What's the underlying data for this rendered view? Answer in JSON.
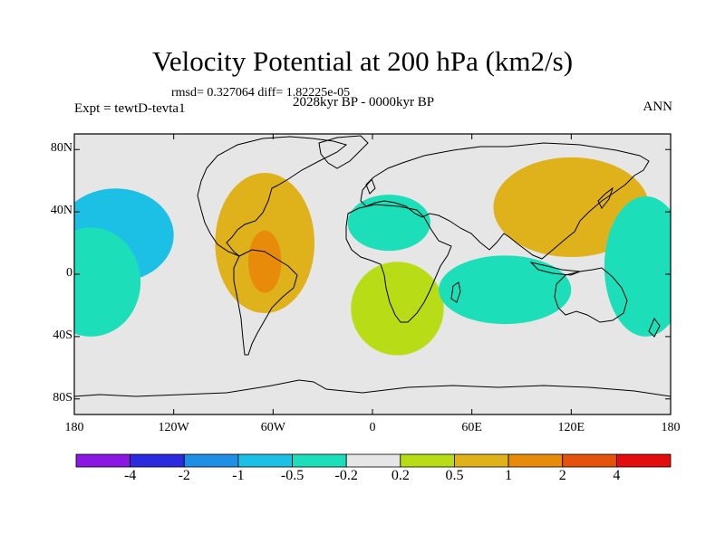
{
  "title": "Velocity Potential at 200 hPa (km2/s)",
  "stats_line": "rmsd= 0.327064 diff= 1.82225e-05",
  "period_line": "2028kyr BP - 0000kyr BP",
  "experiment": "Expt = tewtD-tevta1",
  "season": "ANN",
  "colors": {
    "ocean_bg": "#e6e6e6",
    "levels": [
      "#8b17e3",
      "#2a2adf",
      "#1e8fe4",
      "#1cc0e4",
      "#1cdfb9",
      "#e6e6e6",
      "#b8dd16",
      "#dfb11b",
      "#e88b0b",
      "#e5520c",
      "#e20e0e"
    ]
  },
  "chart_data": {
    "type": "heatmap",
    "projection": "cylindrical equidistant",
    "variable": "Velocity Potential at 200 hPa",
    "units": "km2/s",
    "xlim": [
      -180,
      180
    ],
    "ylim": [
      -90,
      90
    ],
    "x_ticks": [
      {
        "value": -180,
        "label": "180"
      },
      {
        "value": -120,
        "label": "120W"
      },
      {
        "value": -60,
        "label": "60W"
      },
      {
        "value": 0,
        "label": "0"
      },
      {
        "value": 60,
        "label": "60E"
      },
      {
        "value": 120,
        "label": "120E"
      },
      {
        "value": 180,
        "label": "180"
      }
    ],
    "y_ticks": [
      {
        "value": 80,
        "label": "80N"
      },
      {
        "value": 40,
        "label": "40N"
      },
      {
        "value": 0,
        "label": "0"
      },
      {
        "value": -40,
        "label": "40S"
      },
      {
        "value": -80,
        "label": "80S"
      }
    ],
    "colorbar_levels": [
      -4,
      -2,
      -1,
      -0.5,
      -0.2,
      0.2,
      0.5,
      1,
      2,
      4
    ],
    "colorbar_labels": [
      "-4",
      "-2",
      "-1",
      "-0.5",
      "-0.2",
      "0.2",
      "0.5",
      "1",
      "2",
      "4"
    ],
    "features": [
      {
        "name": "central-pacific-negative",
        "lon": -155,
        "lat": 25,
        "lon_radius": 35,
        "lat_radius": 30,
        "value": -0.6
      },
      {
        "name": "east-pacific-negative",
        "lon": -170,
        "lat": -5,
        "lon_radius": 30,
        "lat_radius": 35,
        "value": -0.4
      },
      {
        "name": "americas-positive",
        "lon": -65,
        "lat": 20,
        "lon_radius": 30,
        "lat_radius": 45,
        "value": 0.7
      },
      {
        "name": "caribbean-core",
        "lon": -65,
        "lat": 8,
        "lon_radius": 10,
        "lat_radius": 20,
        "value": 1.1
      },
      {
        "name": "north-atlantic-africa-negative",
        "lon": 10,
        "lat": 33,
        "lon_radius": 25,
        "lat_radius": 18,
        "value": -0.4
      },
      {
        "name": "africa-positive",
        "lon": 15,
        "lat": -22,
        "lon_radius": 28,
        "lat_radius": 30,
        "value": 0.4
      },
      {
        "name": "indian-ocean-negative",
        "lon": 80,
        "lat": -10,
        "lon_radius": 40,
        "lat_radius": 22,
        "value": -0.4
      },
      {
        "name": "asia-positive",
        "lon": 120,
        "lat": 43,
        "lon_radius": 47,
        "lat_radius": 32,
        "value": 0.7
      },
      {
        "name": "asia-core",
        "lon": 130,
        "lat": 40,
        "lon_radius": 20,
        "lat_radius": 12,
        "value": 0.9
      },
      {
        "name": "west-pacific-negative",
        "lon": 165,
        "lat": 5,
        "lon_radius": 25,
        "lat_radius": 45,
        "value": -0.5
      }
    ]
  }
}
